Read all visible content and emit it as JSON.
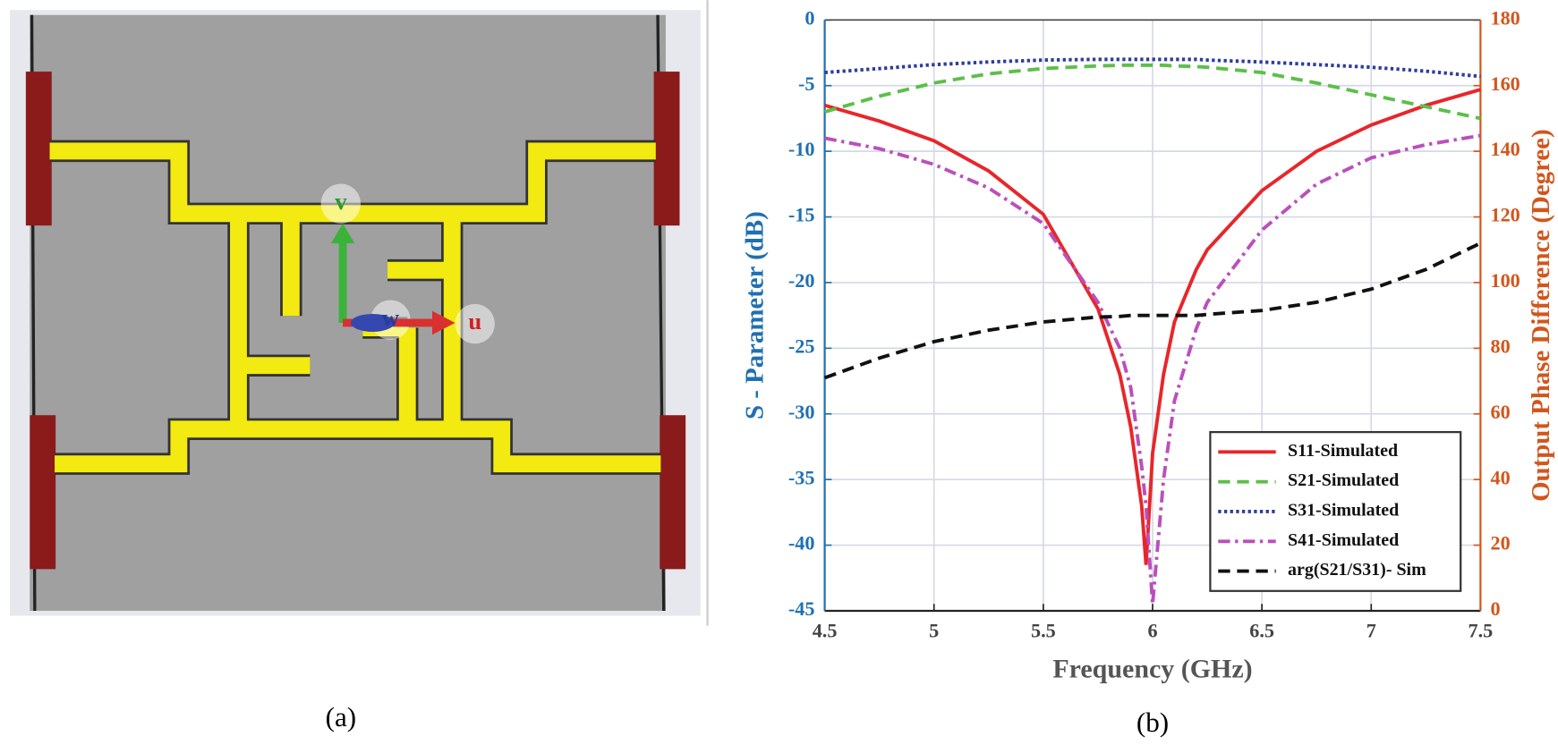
{
  "panel_labels": [
    "(a)",
    "(b)"
  ],
  "layout_axes": {
    "v": "v",
    "w": "w",
    "u": "u"
  },
  "chart_data": {
    "type": "line",
    "xlabel": "Frequency (GHz)",
    "ylabel": "S - Parameter (dB)",
    "y2label": "Output Phase Difference (Degree)",
    "x": [
      4.5,
      4.75,
      5.0,
      5.25,
      5.5,
      5.75,
      5.85,
      5.9,
      5.95,
      5.97,
      6.0,
      6.05,
      6.1,
      6.2,
      6.25,
      6.5,
      6.75,
      7.0,
      7.25,
      7.5
    ],
    "xlim": [
      4.5,
      7.5
    ],
    "xticks": [
      4.5,
      5,
      5.5,
      6,
      6.5,
      7,
      7.5
    ],
    "ylim": [
      -45,
      0
    ],
    "yticks": [
      0,
      -5,
      -10,
      -15,
      -20,
      -25,
      -30,
      -35,
      -40,
      -45
    ],
    "y2lim": [
      0,
      180
    ],
    "y2ticks": [
      0,
      20,
      40,
      60,
      80,
      100,
      120,
      140,
      160,
      180
    ],
    "grid": true,
    "legend": "lower right",
    "ycolor": "#1f70b0",
    "y2color": "#d2561c",
    "series": [
      {
        "name": "S11-Simulated",
        "color": "#e8262a",
        "style": "solid",
        "values": [
          -6.5,
          -7.7,
          -9.2,
          -11.5,
          -14.8,
          -22,
          -27,
          -31,
          -37,
          -41.5,
          -33,
          -27,
          -23,
          -19,
          -17.5,
          -13,
          -10,
          -8,
          -6.5,
          -5.3
        ]
      },
      {
        "name": "S21-Simulated",
        "color": "#5cbf4a",
        "style": "dashed",
        "values": [
          -7,
          -5.8,
          -4.8,
          -4.1,
          -3.7,
          -3.5,
          -3.45,
          -3.45,
          -3.45,
          -3.45,
          -3.45,
          -3.45,
          -3.5,
          -3.55,
          -3.6,
          -4,
          -4.8,
          -5.7,
          -6.6,
          -7.5
        ]
      },
      {
        "name": "S31-Simulated",
        "color": "#2e3d9c",
        "style": "dotted",
        "values": [
          -4,
          -3.7,
          -3.4,
          -3.2,
          -3.05,
          -3,
          -3,
          -3,
          -3,
          -3,
          -3,
          -3,
          -3,
          -3,
          -3.05,
          -3.2,
          -3.4,
          -3.6,
          -3.9,
          -4.3
        ]
      },
      {
        "name": "S41-Simulated",
        "color": "#bb4fbb",
        "style": "dashdot",
        "values": [
          -9,
          -9.8,
          -11,
          -12.8,
          -15.5,
          -21.5,
          -25,
          -28,
          -34,
          -37,
          -44.5,
          -35,
          -29,
          -23.5,
          -21.5,
          -16,
          -12.5,
          -10.5,
          -9.5,
          -8.8
        ]
      },
      {
        "name": "arg(S21/S31)- Sim",
        "color": "#111111",
        "style": "dashed",
        "axis": "y2",
        "values": [
          71,
          77,
          82,
          85.5,
          88,
          89.5,
          89.7,
          90,
          90,
          90,
          90,
          90,
          90,
          90,
          90.3,
          91.5,
          94,
          98,
          104,
          112
        ]
      }
    ]
  }
}
